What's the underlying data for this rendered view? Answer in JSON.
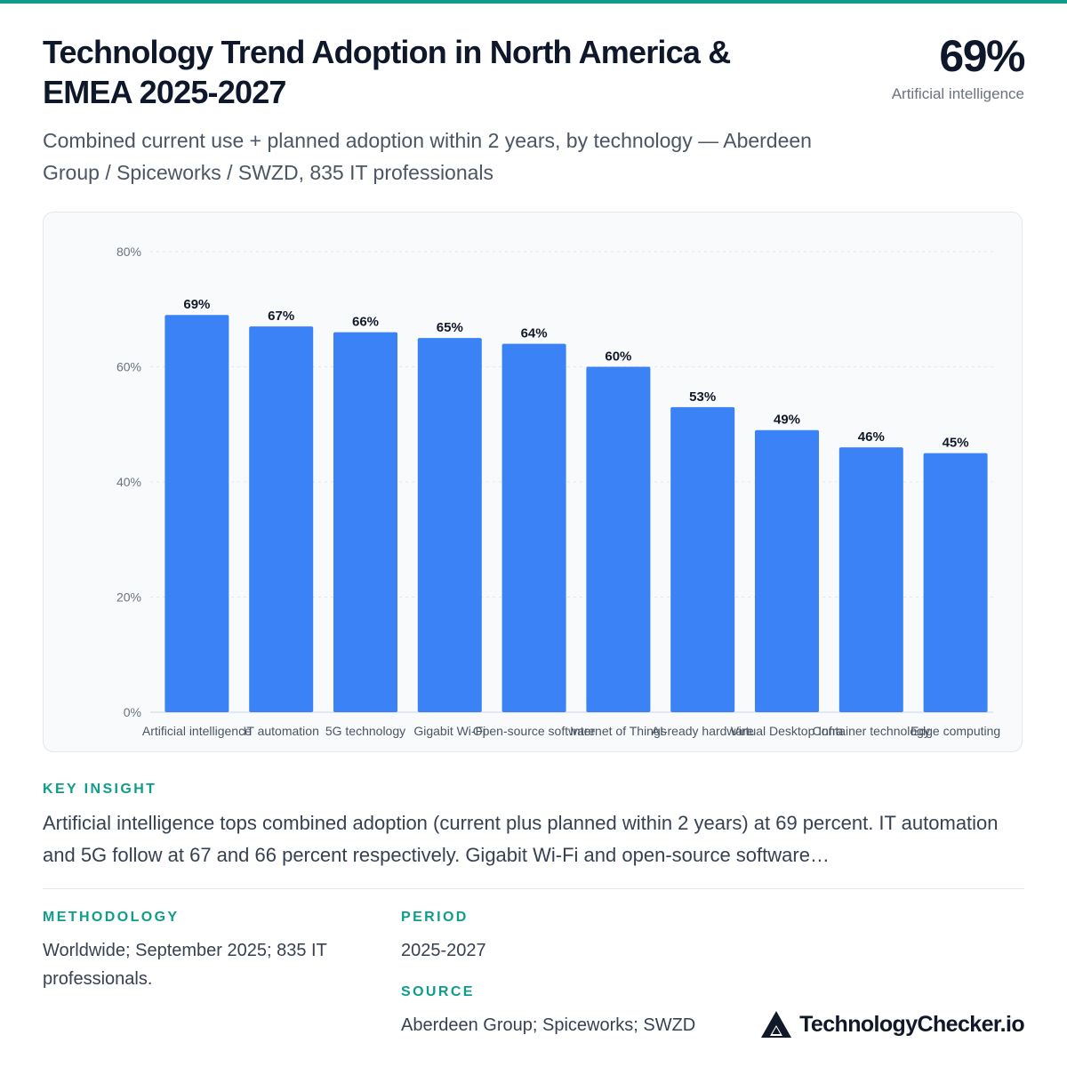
{
  "header": {
    "title": "Technology Trend Adoption in North America & EMEA 2025-2027",
    "subtitle": "Combined current use + planned adoption within 2 years, by technology — Aberdeen Group / Spiceworks / SWZD, 835 IT professionals"
  },
  "kpi": {
    "value": "69%",
    "label": "Artificial intelligence"
  },
  "chart_data": {
    "type": "bar",
    "categories": [
      "Artificial intelligence",
      "IT automation",
      "5G technology",
      "Gigabit Wi-Fi",
      "Open-source software",
      "Internet of Things",
      "AI-ready hardware",
      "Virtual Desktop Infra",
      "Container technology",
      "Edge computing"
    ],
    "values": [
      69,
      67,
      66,
      65,
      64,
      60,
      53,
      49,
      46,
      45
    ],
    "value_labels": [
      "69%",
      "67%",
      "66%",
      "65%",
      "64%",
      "60%",
      "53%",
      "49%",
      "46%",
      "45%"
    ],
    "ylim": [
      0,
      80
    ],
    "yticks": [
      "0%",
      "20%",
      "40%",
      "60%",
      "80%"
    ],
    "ytick_values": [
      0,
      20,
      40,
      60,
      80
    ],
    "grid": true,
    "bar_color": "#3b82f6"
  },
  "insight": {
    "label": "KEY INSIGHT",
    "text": "Artificial intelligence tops combined adoption (current plus planned within 2 years) at 69 percent. IT automation and 5G follow at 67 and 66 percent respectively. Gigabit Wi-Fi and open-source software…"
  },
  "methodology": {
    "label": "METHODOLOGY",
    "text": "Worldwide; September 2025; 835 IT professionals."
  },
  "period": {
    "label": "PERIOD",
    "text": "2025-2027"
  },
  "source": {
    "label": "SOURCE",
    "text": "Aberdeen Group; Spiceworks; SWZD"
  },
  "brand": {
    "name": "TechnologyChecker.io"
  },
  "colors": {
    "accent": "#0f9d8a",
    "bar": "#3b82f6"
  }
}
